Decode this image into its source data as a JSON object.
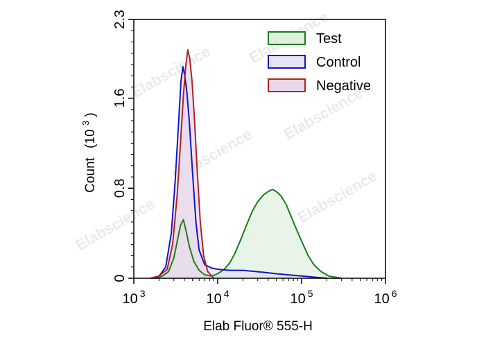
{
  "chart_data": {
    "type": "area",
    "title": "",
    "xlabel": "Elab Fluor® 555-H",
    "ylabel": "Count",
    "ylabel_unit_base": "(10",
    "ylabel_unit_exp": "3",
    "ylabel_unit_close": ")",
    "xscale": "log",
    "xlim": [
      1000,
      1000000
    ],
    "ylim": [
      0,
      2.3
    ],
    "x_ticks": [
      {
        "base": "10",
        "exp": "3"
      },
      {
        "base": "10",
        "exp": "4"
      },
      {
        "base": "10",
        "exp": "5"
      },
      {
        "base": "10",
        "exp": "6"
      }
    ],
    "y_ticks": [
      "0",
      "0.8",
      "1.6",
      "2.3"
    ],
    "y_tick_values": [
      0,
      0.8,
      1.6,
      2.3
    ],
    "grid": false,
    "legend_position": "top-right",
    "watermark": "Elabscience",
    "series": [
      {
        "name": "Test",
        "stroke": "#1a7d1a",
        "fill": "#dff0df",
        "points": [
          [
            1800,
            0
          ],
          [
            2200,
            0.02
          ],
          [
            2600,
            0.06
          ],
          [
            3000,
            0.18
          ],
          [
            3300,
            0.33
          ],
          [
            3600,
            0.47
          ],
          [
            3900,
            0.52
          ],
          [
            4200,
            0.42
          ],
          [
            4600,
            0.28
          ],
          [
            5200,
            0.15
          ],
          [
            6000,
            0.07
          ],
          [
            7000,
            0.03
          ],
          [
            8500,
            0.02
          ],
          [
            10000,
            0.04
          ],
          [
            12000,
            0.08
          ],
          [
            14000,
            0.14
          ],
          [
            16000,
            0.22
          ],
          [
            19000,
            0.35
          ],
          [
            22000,
            0.47
          ],
          [
            26000,
            0.6
          ],
          [
            30000,
            0.68
          ],
          [
            35000,
            0.74
          ],
          [
            40000,
            0.77
          ],
          [
            45000,
            0.79
          ],
          [
            50000,
            0.77
          ],
          [
            57000,
            0.73
          ],
          [
            65000,
            0.66
          ],
          [
            75000,
            0.55
          ],
          [
            85000,
            0.45
          ],
          [
            100000,
            0.33
          ],
          [
            120000,
            0.2
          ],
          [
            140000,
            0.12
          ],
          [
            170000,
            0.06
          ],
          [
            210000,
            0.02
          ],
          [
            300000,
            0
          ]
        ]
      },
      {
        "name": "Control",
        "stroke": "#1414c8",
        "fill": "#e4e4f5",
        "points": [
          [
            1600,
            0
          ],
          [
            2000,
            0.02
          ],
          [
            2400,
            0.1
          ],
          [
            2800,
            0.4
          ],
          [
            3100,
            0.85
          ],
          [
            3400,
            1.35
          ],
          [
            3650,
            1.75
          ],
          [
            3850,
            1.88
          ],
          [
            4050,
            1.8
          ],
          [
            4300,
            1.65
          ],
          [
            4600,
            1.38
          ],
          [
            5000,
            0.95
          ],
          [
            5500,
            0.5
          ],
          [
            6000,
            0.25
          ],
          [
            7000,
            0.12
          ],
          [
            8500,
            0.09
          ],
          [
            10000,
            0.08
          ],
          [
            14000,
            0.07
          ],
          [
            20000,
            0.07
          ],
          [
            28000,
            0.06
          ],
          [
            38000,
            0.05
          ],
          [
            50000,
            0.04
          ],
          [
            70000,
            0.03
          ],
          [
            100000,
            0.02
          ],
          [
            140000,
            0.01
          ],
          [
            200000,
            0
          ]
        ]
      },
      {
        "name": "Negative",
        "stroke": "#b22222",
        "fill": "#ead8e8",
        "points": [
          [
            1600,
            0
          ],
          [
            2000,
            0.02
          ],
          [
            2500,
            0.08
          ],
          [
            2900,
            0.3
          ],
          [
            3300,
            0.75
          ],
          [
            3600,
            1.2
          ],
          [
            3900,
            1.62
          ],
          [
            4150,
            1.88
          ],
          [
            4400,
            2.03
          ],
          [
            4650,
            1.95
          ],
          [
            4950,
            1.75
          ],
          [
            5300,
            1.4
          ],
          [
            5700,
            0.95
          ],
          [
            6200,
            0.5
          ],
          [
            6800,
            0.2
          ],
          [
            7600,
            0.06
          ],
          [
            9000,
            0
          ]
        ]
      }
    ]
  }
}
